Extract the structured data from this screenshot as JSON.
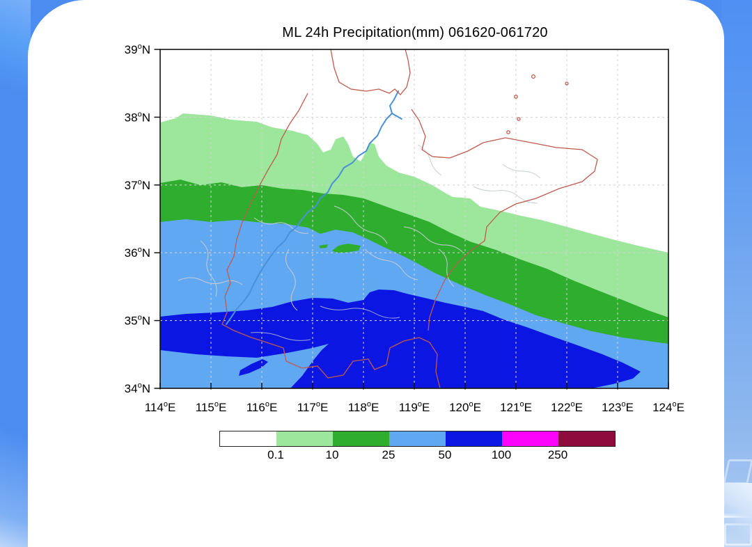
{
  "page": {
    "background_color": "#4a8cf0",
    "card_color": "#ffffff"
  },
  "chart": {
    "title": "ML 24h Precipitation(mm) 061620-061720",
    "x_axis": {
      "deg": [
        114,
        115,
        116,
        117,
        118,
        119,
        120,
        121,
        122,
        123,
        124
      ],
      "dir": "E"
    },
    "y_axis": {
      "deg": [
        34,
        35,
        36,
        37,
        38,
        39
      ],
      "dir": "N"
    }
  },
  "map_lines": {
    "province_border_color": "#bf5a4d",
    "county_border_color": "#c6ccd6",
    "river_color": "#4a90d8",
    "grid_color": "#d2d2d2",
    "frame_color": "#111111"
  },
  "chart_data": {
    "type": "heatmap",
    "subtype": "filled-contour precipitation map (lon/lat)",
    "title": "ML 24h Precipitation(mm) 061620-061720",
    "xlim": [
      114,
      124
    ],
    "ylim": [
      34,
      39
    ],
    "x_tick_labels": [
      "114°E",
      "115°E",
      "116°E",
      "117°E",
      "118°E",
      "119°E",
      "120°E",
      "121°E",
      "122°E",
      "123°E",
      "124°E"
    ],
    "y_tick_labels": [
      "34°N",
      "35°N",
      "36°N",
      "37°N",
      "38°N",
      "39°N"
    ],
    "levels_mm": [
      0.1,
      10,
      25,
      50,
      100,
      250
    ],
    "level_colors": [
      "#ffffff",
      "#9ce79c",
      "#2fad2f",
      "#61a8f3",
      "#0b16e3",
      "#fb02fb",
      "#8e0b3e"
    ],
    "legend_position": "bottom",
    "grid": "dashed graticule every 1 degree",
    "contour_lat_by_lon": {
      "lon": [
        114,
        115,
        116,
        117,
        118,
        119,
        120,
        121,
        122,
        123,
        124
      ],
      "mm_0_1": [
        37.9,
        38.0,
        37.9,
        37.7,
        37.4,
        37.1,
        36.85,
        36.55,
        36.4,
        36.15,
        36.0
      ],
      "mm_10": [
        37.0,
        37.05,
        37.0,
        36.9,
        36.8,
        36.55,
        36.2,
        35.9,
        35.65,
        35.3,
        35.05
      ],
      "mm_25": [
        36.45,
        36.45,
        36.45,
        36.35,
        36.25,
        35.9,
        35.5,
        35.2,
        34.95,
        34.75,
        34.65
      ],
      "mm_50_north": [
        35.05,
        35.1,
        35.2,
        35.35,
        35.3,
        35.35,
        35.2,
        34.95,
        34.7,
        34.4,
        null
      ],
      "mm_50_south": [
        34.55,
        34.5,
        34.5,
        34.65,
        34.0,
        34.0,
        34.0,
        34.0,
        34.0,
        34.15,
        null
      ]
    },
    "features": {
      "green_islands_10_25": "two small 10-25 mm cells near 117.1-118.0E, 36.0-36.2N",
      "blue_island_50": "small 50+ mm cell near 115.5-116.1E, 34.2-34.4N",
      "light_blue_wedge": "25-50 mm wedge in the southwest below the 50 mm band, tip near 117.3E 34.65N",
      "max_band_visible": "50-100 mm (deep blue); 100 and 250 mm legend classes not reached",
      "region": "Shandong / Bohai Bay area with province borders, county borders and river shown"
    }
  }
}
